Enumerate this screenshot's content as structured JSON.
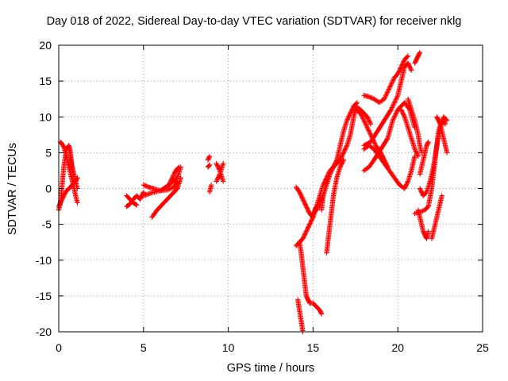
{
  "chart_data": {
    "type": "scatter",
    "title": "Day 018 of 2022, Sidereal Day-to-day VTEC variation (SDTVAR) for receiver nklg",
    "xlabel": "GPS time / hours",
    "ylabel": "SDTVAR / TECUs",
    "xlim": [
      0,
      25
    ],
    "ylim": [
      -20,
      20
    ],
    "xticks": [
      "0",
      "5",
      "10",
      "15",
      "20",
      "25"
    ],
    "yticks": [
      "-20",
      "-15",
      "-10",
      "-5",
      "0",
      "5",
      "10",
      "15",
      "20"
    ],
    "grid": true,
    "marker": "plus",
    "color": "#ff0000",
    "series": [
      {
        "x": [
          0.0,
          0.1,
          0.2,
          0.3,
          0.45,
          0.6,
          0.7,
          0.8,
          0.9
        ],
        "y": [
          -3.0,
          -2.0,
          0.5,
          3.0,
          5.5,
          6.0,
          5.0,
          2.0,
          0.5
        ]
      },
      {
        "x": [
          0.1,
          0.2,
          0.3,
          0.4,
          0.5,
          0.6,
          0.7,
          0.8,
          0.9,
          1.0,
          1.1
        ],
        "y": [
          6.5,
          6.2,
          5.8,
          5.0,
          4.0,
          3.0,
          2.0,
          1.0,
          0.0,
          -1.0,
          -2.0
        ]
      },
      {
        "x": [
          0.0,
          0.2,
          0.4,
          0.6,
          0.8,
          1.0,
          1.1
        ],
        "y": [
          -2.5,
          -1.5,
          -0.5,
          0.0,
          0.5,
          1.0,
          1.5
        ]
      },
      {
        "x": [
          0.6,
          0.7,
          0.8,
          0.9,
          1.0,
          1.1
        ],
        "y": [
          6.0,
          4.0,
          3.0,
          2.0,
          1.0,
          0.0
        ]
      },
      {
        "x": [
          4.0,
          4.2,
          4.4,
          4.6,
          4.8,
          5.0
        ],
        "y": [
          -2.5,
          -2.2,
          -1.5,
          -1.0,
          -1.5,
          -0.5
        ]
      },
      {
        "x": [
          4.0,
          4.2,
          4.4,
          4.6
        ],
        "y": [
          -1.0,
          -1.5,
          -2.0,
          -2.3
        ]
      },
      {
        "x": [
          5.0,
          5.3,
          5.6,
          6.0,
          6.4,
          6.8,
          7.0
        ],
        "y": [
          0.5,
          0.2,
          0.0,
          -0.3,
          -0.2,
          0.2,
          1.0
        ]
      },
      {
        "x": [
          5.5,
          5.8,
          6.2,
          6.6,
          7.0,
          7.2
        ],
        "y": [
          -4.0,
          -3.0,
          -2.0,
          -1.0,
          0.0,
          1.5
        ]
      },
      {
        "x": [
          5.0,
          5.5,
          6.0,
          6.5,
          7.0,
          7.2
        ],
        "y": [
          -1.0,
          -0.6,
          -0.3,
          0.5,
          1.5,
          3.0
        ]
      },
      {
        "x": [
          6.5,
          6.7,
          6.9,
          7.1
        ],
        "y": [
          0.5,
          1.5,
          2.5,
          3.0
        ]
      },
      {
        "x": [
          8.8,
          8.9
        ],
        "y": [
          4.0,
          4.5
        ]
      },
      {
        "x": [
          8.8,
          8.9
        ],
        "y": [
          3.0,
          3.3
        ]
      },
      {
        "x": [
          8.9,
          9.0
        ],
        "y": [
          -0.5,
          0.5
        ]
      },
      {
        "x": [
          9.3,
          9.5,
          9.7
        ],
        "y": [
          1.0,
          2.0,
          3.5
        ]
      },
      {
        "x": [
          9.3,
          9.5,
          9.7
        ],
        "y": [
          3.5,
          2.5,
          1.0
        ]
      },
      {
        "x": [
          14.0,
          14.2,
          14.4,
          14.6,
          14.8,
          15.0,
          15.1,
          15.2
        ],
        "y": [
          0.2,
          -0.5,
          -1.5,
          -2.5,
          -3.5,
          -4.0,
          -3.0,
          -2.5
        ]
      },
      {
        "x": [
          14.0,
          14.2,
          14.4,
          14.6,
          14.8,
          15.0,
          15.2,
          15.4,
          15.6,
          15.8,
          16.0,
          16.2,
          16.4,
          16.6,
          16.8,
          17.0,
          17.2,
          17.4,
          17.6
        ],
        "y": [
          -8.0,
          -7.5,
          -7.0,
          -6.0,
          -5.0,
          -4.0,
          -2.5,
          -1.0,
          0.5,
          1.5,
          2.5,
          3.0,
          4.0,
          6.0,
          8.0,
          9.5,
          10.5,
          11.5,
          12.0
        ]
      },
      {
        "x": [
          14.2,
          14.3,
          14.4,
          14.5,
          14.6,
          14.7,
          14.8,
          15.0,
          15.2,
          15.4,
          15.5
        ],
        "y": [
          -7.5,
          -9.0,
          -11.0,
          -13.0,
          -15.0,
          -15.5,
          -16.0,
          -16.0,
          -16.5,
          -17.0,
          -17.5
        ]
      },
      {
        "x": [
          14.1,
          14.2,
          14.3,
          14.4
        ],
        "y": [
          -15.5,
          -17.0,
          -18.5,
          -20.0
        ]
      },
      {
        "x": [
          15.0,
          15.2,
          15.4,
          15.6,
          15.8,
          16.0,
          16.2,
          16.4,
          16.6,
          16.8,
          17.0,
          17.2,
          17.4,
          17.5
        ],
        "y": [
          -3.5,
          -3.0,
          -2.0,
          -1.0,
          0.5,
          2.0,
          3.0,
          3.5,
          4.0,
          5.0,
          6.0,
          7.5,
          10.0,
          11.0
        ]
      },
      {
        "x": [
          15.8,
          15.9,
          16.0,
          16.1,
          16.2,
          16.4,
          16.6,
          16.8
        ],
        "y": [
          -9.0,
          -7.0,
          -5.0,
          -3.0,
          -1.0,
          1.5,
          3.0,
          4.0
        ]
      },
      {
        "x": [
          15.5,
          15.6,
          15.7,
          15.8
        ],
        "y": [
          -3.0,
          -1.0,
          0.0,
          1.0
        ]
      },
      {
        "x": [
          17.5,
          17.8,
          18.1,
          18.4,
          18.7,
          19.0,
          19.2,
          19.4
        ],
        "y": [
          11.0,
          10.5,
          9.0,
          7.5,
          6.0,
          5.0,
          4.0,
          3.0
        ]
      },
      {
        "x": [
          17.4,
          17.6,
          17.8,
          18.0,
          18.2,
          18.4
        ],
        "y": [
          11.5,
          11.3,
          11.0,
          10.5,
          10.0,
          9.0
        ]
      },
      {
        "x": [
          18.0,
          18.3,
          18.6,
          18.9,
          19.2,
          19.5,
          19.8,
          20.0,
          20.2,
          20.4,
          20.6
        ],
        "y": [
          13.0,
          12.8,
          12.5,
          12.0,
          12.5,
          14.0,
          15.5,
          16.0,
          17.0,
          18.0,
          18.5
        ]
      },
      {
        "x": [
          18.0,
          18.4,
          18.8,
          19.2,
          19.6,
          20.0,
          20.2,
          20.4,
          20.6,
          20.8
        ],
        "y": [
          6.0,
          6.5,
          8.0,
          9.5,
          11.0,
          13.0,
          15.0,
          17.0,
          17.5,
          16.5
        ]
      },
      {
        "x": [
          18.0,
          18.3,
          18.6,
          18.9,
          19.2,
          19.5,
          19.8,
          20.1,
          20.4,
          20.6,
          20.8,
          21.0
        ],
        "y": [
          5.5,
          6.0,
          5.5,
          4.5,
          3.5,
          2.5,
          1.5,
          0.5,
          0.0,
          1.0,
          2.5,
          4.5
        ]
      },
      {
        "x": [
          18.0,
          18.3,
          18.6,
          19.0,
          19.4,
          19.7,
          20.0,
          20.4,
          20.7,
          21.0
        ],
        "y": [
          2.5,
          3.0,
          4.0,
          5.5,
          7.0,
          9.5,
          11.0,
          12.0,
          11.0,
          8.5
        ]
      },
      {
        "x": [
          20.2,
          20.4,
          20.6,
          20.8,
          21.0,
          21.2
        ],
        "y": [
          11.0,
          10.0,
          8.5,
          7.0,
          5.5,
          4.5
        ]
      },
      {
        "x": [
          20.6,
          20.8,
          21.0,
          21.2,
          21.3,
          21.4
        ],
        "y": [
          12.5,
          11.0,
          9.5,
          7.5,
          6.0,
          5.0
        ]
      },
      {
        "x": [
          21.0,
          21.1,
          21.2,
          21.3
        ],
        "y": [
          17.5,
          18.0,
          18.5,
          19.0
        ]
      },
      {
        "x": [
          21.0,
          21.2,
          21.4,
          21.6,
          21.8,
          22.0,
          22.2,
          22.4,
          22.6,
          22.8
        ],
        "y": [
          -3.5,
          -3.3,
          -3.2,
          -3.0,
          -2.5,
          0.0,
          4.0,
          8.0,
          9.5,
          9.0
        ]
      },
      {
        "x": [
          21.2,
          21.3,
          21.4,
          21.5,
          21.6,
          21.7,
          21.8
        ],
        "y": [
          -3.0,
          -4.0,
          -5.0,
          -6.0,
          -6.5,
          -7.0,
          -6.0
        ]
      },
      {
        "x": [
          21.3,
          21.5,
          21.7,
          21.9,
          22.1,
          22.3,
          22.5,
          22.7,
          22.9
        ],
        "y": [
          0.0,
          -1.0,
          -0.5,
          1.0,
          3.0,
          6.0,
          8.5,
          10.0,
          9.5
        ]
      },
      {
        "x": [
          21.3,
          21.4,
          21.5,
          21.6,
          21.7,
          21.8
        ],
        "y": [
          2.0,
          3.0,
          4.0,
          5.0,
          6.0,
          6.5
        ]
      },
      {
        "x": [
          22.3,
          22.4,
          22.5,
          22.6,
          22.7,
          22.8,
          22.9
        ],
        "y": [
          10.0,
          9.5,
          9.0,
          8.0,
          7.0,
          6.0,
          5.0
        ]
      },
      {
        "x": [
          22.0,
          22.2,
          22.4,
          22.6
        ],
        "y": [
          -7.0,
          -5.0,
          -3.0,
          -1.0
        ]
      }
    ]
  }
}
